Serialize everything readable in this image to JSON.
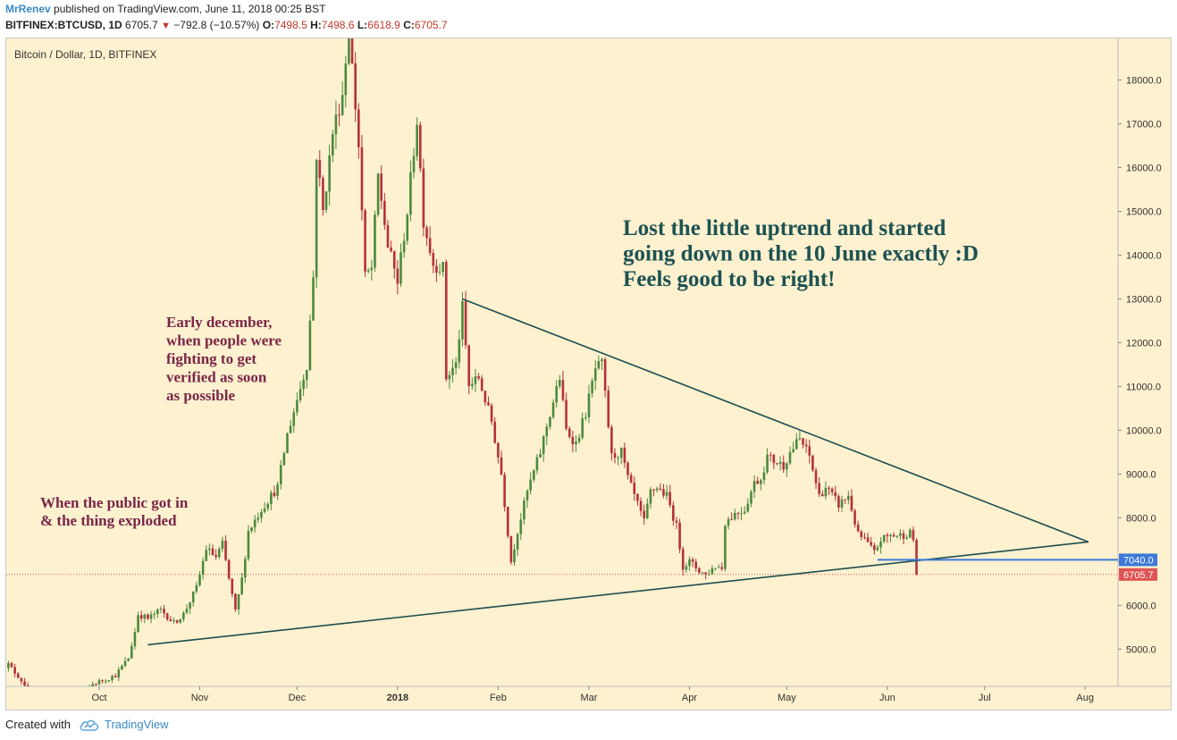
{
  "header": {
    "author": "MrRenev",
    "published": "published on TradingView.com, June 11, 2018 00:25 BST",
    "symbol": "BITFINEX:BTCUSD, 1D",
    "last": "6705.7",
    "change_arrow": "▼",
    "change": "−792.8 (−10.57%)",
    "o_label": "O:",
    "o_value": "7498.5",
    "h_label": "H:",
    "h_value": "7498.6",
    "l_label": "L:",
    "l_value": "6618.9",
    "c_label": "C:",
    "c_value": "6705.7"
  },
  "footer": {
    "created_with": "Created with",
    "brand": "TradingView",
    "logo_icon": "tradingview-cloud-icon"
  },
  "chart_data": {
    "type": "candlestick",
    "title": "Bitcoin / Dollar, 1D, BITFINEX",
    "x_ticks": [
      "Oct",
      "Nov",
      "Dec",
      "2018",
      "Feb",
      "Mar",
      "Apr",
      "May",
      "Jun",
      "Jul",
      "Aug"
    ],
    "x_ticks_date": [
      "2017-10-01",
      "2017-11-01",
      "2017-12-01",
      "2018-01-01",
      "2018-02-01",
      "2018-03-01",
      "2018-04-01",
      "2018-05-01",
      "2018-06-01",
      "2018-07-01",
      "2018-08-01"
    ],
    "y_ticks": [
      "5000.0",
      "6000.0",
      "7000.0",
      "8000.0",
      "9000.0",
      "10000.0",
      "11000.0",
      "12000.0",
      "13000.0",
      "14000.0",
      "15000.0",
      "16000.0",
      "17000.0",
      "18000.0"
    ],
    "ylim": [
      4150,
      18950
    ],
    "grid": false,
    "colors": {
      "background": "#fdf1cf",
      "up": "#4c8a3e",
      "down": "#b5313b",
      "trendline": "#1d4f4f",
      "blue_line": "#3c78d8",
      "last_price": "#e05353",
      "annotation_dark": "#7a2548",
      "annotation_teal": "#1d5252"
    },
    "price_labels": [
      {
        "value": "7040.0",
        "color": "#3c78d8"
      },
      {
        "value": "6705.7",
        "color": "#e05353"
      }
    ],
    "price_path": [
      [
        "2017-09-01",
        4600
      ],
      [
        "2017-09-03",
        4650
      ],
      [
        "2017-09-08",
        4200
      ],
      [
        "2017-09-15",
        3300
      ],
      [
        "2017-09-20",
        3950
      ],
      [
        "2017-09-24",
        3700
      ],
      [
        "2017-09-29",
        4200
      ],
      [
        "2017-10-06",
        4400
      ],
      [
        "2017-10-10",
        4800
      ],
      [
        "2017-10-12",
        5400
      ],
      [
        "2017-10-13",
        5800
      ],
      [
        "2017-10-16",
        5700
      ],
      [
        "2017-10-20",
        5900
      ],
      [
        "2017-10-24",
        5600
      ],
      [
        "2017-10-27",
        5800
      ],
      [
        "2017-10-31",
        6400
      ],
      [
        "2017-11-03",
        7300
      ],
      [
        "2017-11-06",
        7100
      ],
      [
        "2017-11-08",
        7400
      ],
      [
        "2017-11-10",
        6600
      ],
      [
        "2017-11-12",
        5850
      ],
      [
        "2017-11-14",
        6600
      ],
      [
        "2017-11-16",
        7700
      ],
      [
        "2017-11-20",
        8200
      ],
      [
        "2017-11-25",
        8700
      ],
      [
        "2017-11-28",
        9900
      ],
      [
        "2017-12-01",
        10700
      ],
      [
        "2017-12-04",
        11500
      ],
      [
        "2017-12-06",
        13500
      ],
      [
        "2017-12-07",
        16300
      ],
      [
        "2017-12-09",
        15000
      ],
      [
        "2017-12-12",
        16800
      ],
      [
        "2017-12-15",
        17700
      ],
      [
        "2017-12-17",
        19200
      ],
      [
        "2017-12-20",
        16500
      ],
      [
        "2017-12-22",
        13500
      ],
      [
        "2017-12-24",
        13700
      ],
      [
        "2017-12-26",
        15800
      ],
      [
        "2017-12-29",
        14200
      ],
      [
        "2018-01-01",
        13400
      ],
      [
        "2018-01-04",
        15000
      ],
      [
        "2018-01-07",
        17100
      ],
      [
        "2018-01-09",
        14800
      ],
      [
        "2018-01-12",
        13800
      ],
      [
        "2018-01-15",
        13700
      ],
      [
        "2018-01-16",
        11200
      ],
      [
        "2018-01-19",
        11500
      ],
      [
        "2018-01-21",
        12800
      ],
      [
        "2018-01-23",
        11000
      ],
      [
        "2018-01-26",
        11200
      ],
      [
        "2018-01-30",
        10200
      ],
      [
        "2018-02-02",
        9000
      ],
      [
        "2018-02-05",
        7000
      ],
      [
        "2018-02-07",
        7700
      ],
      [
        "2018-02-10",
        8600
      ],
      [
        "2018-02-14",
        9500
      ],
      [
        "2018-02-16",
        10100
      ],
      [
        "2018-02-20",
        11200
      ],
      [
        "2018-02-22",
        10000
      ],
      [
        "2018-02-25",
        9700
      ],
      [
        "2018-02-28",
        10400
      ],
      [
        "2018-03-03",
        11400
      ],
      [
        "2018-03-05",
        11500
      ],
      [
        "2018-03-08",
        9400
      ],
      [
        "2018-03-11",
        9500
      ],
      [
        "2018-03-13",
        8900
      ],
      [
        "2018-03-16",
        8300
      ],
      [
        "2018-03-18",
        7900
      ],
      [
        "2018-03-20",
        8600
      ],
      [
        "2018-03-22",
        8700
      ],
      [
        "2018-03-25",
        8500
      ],
      [
        "2018-03-28",
        7800
      ],
      [
        "2018-03-30",
        6900
      ],
      [
        "2018-04-01",
        7000
      ],
      [
        "2018-04-04",
        6800
      ],
      [
        "2018-04-06",
        6700
      ],
      [
        "2018-04-09",
        6900
      ],
      [
        "2018-04-11",
        6850
      ],
      [
        "2018-04-12",
        7900
      ],
      [
        "2018-04-15",
        8100
      ],
      [
        "2018-04-18",
        8200
      ],
      [
        "2018-04-21",
        8800
      ],
      [
        "2018-04-23",
        8900
      ],
      [
        "2018-04-25",
        9400
      ],
      [
        "2018-04-27",
        9300
      ],
      [
        "2018-04-30",
        9200
      ],
      [
        "2018-05-02",
        9500
      ],
      [
        "2018-05-05",
        9800
      ],
      [
        "2018-05-08",
        9400
      ],
      [
        "2018-05-11",
        8500
      ],
      [
        "2018-05-13",
        8700
      ],
      [
        "2018-05-17",
        8300
      ],
      [
        "2018-05-20",
        8500
      ],
      [
        "2018-05-23",
        7600
      ],
      [
        "2018-05-25",
        7500
      ],
      [
        "2018-05-28",
        7200
      ],
      [
        "2018-05-30",
        7500
      ],
      [
        "2018-06-02",
        7600
      ],
      [
        "2018-06-05",
        7600
      ],
      [
        "2018-06-08",
        7650
      ],
      [
        "2018-06-09",
        7500
      ],
      [
        "2018-06-10",
        6705.7
      ]
    ],
    "trendlines": [
      {
        "name": "upper",
        "from": [
          "2018-01-21",
          13000
        ],
        "to": [
          "2018-08-02",
          7450
        ]
      },
      {
        "name": "lower",
        "from": [
          "2017-10-16",
          5100
        ],
        "to": [
          "2018-08-02",
          7450
        ]
      },
      {
        "name": "level",
        "from": [
          "2018-05-29",
          7040
        ],
        "to": [
          "2018-08-14",
          7040
        ]
      }
    ],
    "last_price_line": 6705.7,
    "annotations": [
      {
        "text": "Lost the little uptrend and started\ngoing down on the 10 June exactly :D\nFeels good to be right!",
        "color": "#1d5252"
      },
      {
        "text": "Early december,\nwhen people were\nfighting to get\nverified as soon\nas possible",
        "color": "#7a2548"
      },
      {
        "text": "When the public got in\n& the thing exploded",
        "color": "#7a2548"
      }
    ]
  }
}
